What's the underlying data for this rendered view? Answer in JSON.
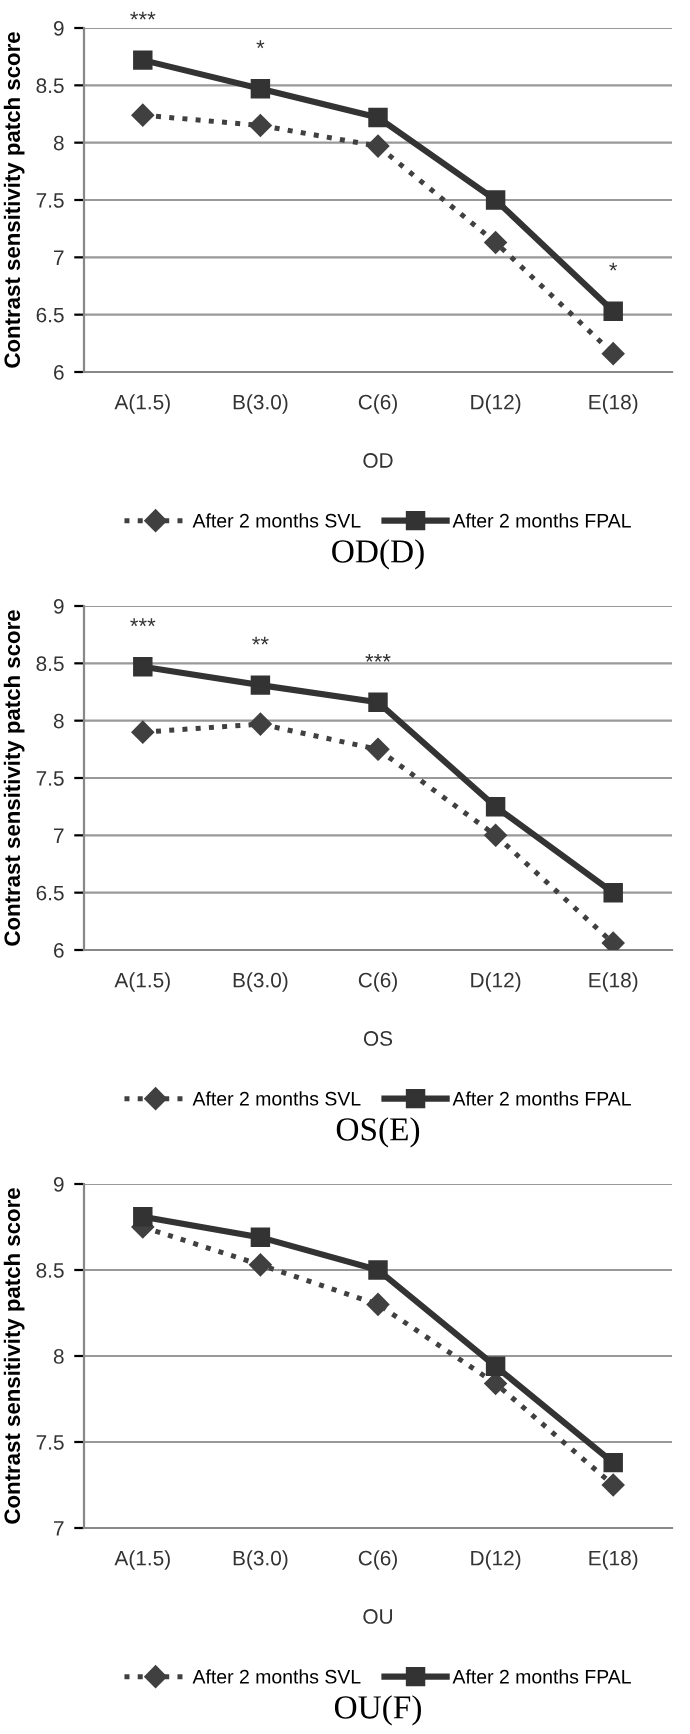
{
  "chart_data": [
    {
      "type": "line",
      "title": "OD(D)",
      "xlabel": "OD",
      "ylabel": "Contrast sensitivity patch score",
      "categories": [
        "A(1.5)",
        "B(3.0)",
        "C(6)",
        "D(12)",
        "E(18)"
      ],
      "series": [
        {
          "name": "After 2 months SVL",
          "color": "#404040",
          "marker": "diamond",
          "line_style": "dotted",
          "values": [
            8.24,
            8.15,
            7.97,
            7.13,
            6.16
          ]
        },
        {
          "name": "After 2 months FPAL",
          "color": "#333333",
          "marker": "square",
          "line_style": "solid",
          "values": [
            8.72,
            8.47,
            8.22,
            7.5,
            6.53
          ]
        }
      ],
      "annotations": [
        {
          "text": "***",
          "x": "A(1.5)",
          "y": 8.72
        },
        {
          "text": "*",
          "x": "B(3.0)",
          "y": 8.47
        },
        {
          "text": "*",
          "x": "E(18)",
          "y": 6.53
        }
      ],
      "ylim": [
        6,
        9
      ],
      "yticks": [
        6,
        6.5,
        7,
        7.5,
        8,
        8.5,
        9
      ],
      "grid": "y",
      "legend": "bottom"
    },
    {
      "type": "line",
      "title": "OS(E)",
      "xlabel": "OS",
      "ylabel": "Contrast sensitivity patch score",
      "categories": [
        "A(1.5)",
        "B(3.0)",
        "C(6)",
        "D(12)",
        "E(18)"
      ],
      "series": [
        {
          "name": "After 2 months SVL",
          "color": "#404040",
          "marker": "diamond",
          "line_style": "dotted",
          "values": [
            7.9,
            7.97,
            7.75,
            7.0,
            6.06
          ]
        },
        {
          "name": "After 2 months FPAL",
          "color": "#333333",
          "marker": "square",
          "line_style": "solid",
          "values": [
            8.47,
            8.31,
            8.16,
            7.25,
            6.5
          ]
        }
      ],
      "annotations": [
        {
          "text": "***",
          "x": "A(1.5)",
          "y": 8.47
        },
        {
          "text": "**",
          "x": "B(3.0)",
          "y": 8.31
        },
        {
          "text": "***",
          "x": "C(6)",
          "y": 8.16
        }
      ],
      "ylim": [
        6,
        9
      ],
      "yticks": [
        6,
        6.5,
        7,
        7.5,
        8,
        8.5,
        9
      ],
      "grid": "y",
      "legend": "bottom"
    },
    {
      "type": "line",
      "title": "OU(F)",
      "xlabel": "OU",
      "ylabel": "Contrast sensitivity patch score",
      "categories": [
        "A(1.5)",
        "B(3.0)",
        "C(6)",
        "D(12)",
        "E(18)"
      ],
      "series": [
        {
          "name": "After 2 months SVL",
          "color": "#404040",
          "marker": "diamond",
          "line_style": "dotted",
          "values": [
            8.75,
            8.53,
            8.3,
            7.84,
            7.25
          ]
        },
        {
          "name": "After 2 months FPAL",
          "color": "#333333",
          "marker": "square",
          "line_style": "solid",
          "values": [
            8.81,
            8.69,
            8.5,
            7.94,
            7.38
          ]
        }
      ],
      "ylim": [
        7,
        9
      ],
      "yticks": [
        7,
        7.5,
        8,
        8.5,
        9
      ],
      "grid": "y",
      "legend": "bottom"
    }
  ]
}
